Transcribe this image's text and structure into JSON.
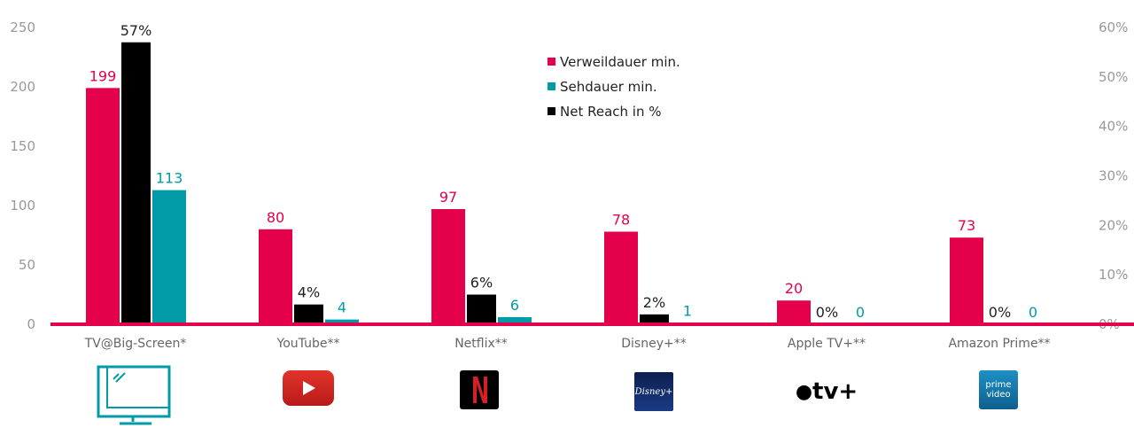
{
  "chart_data": {
    "type": "bar",
    "categories": [
      "TV@Big-Screen*",
      "YouTube**",
      "Netflix**",
      "Disney+**",
      "Apple TV+**",
      "Amazon Prime**"
    ],
    "series": [
      {
        "name": "Verweildauer min.",
        "axis": "left",
        "color": "#e4004b",
        "values": [
          199,
          80,
          97,
          78,
          20,
          73
        ],
        "labels": [
          "199",
          "80",
          "97",
          "78",
          "20",
          "73"
        ]
      },
      {
        "name": "Net Reach in %",
        "axis": "right",
        "color": "#000000",
        "values": [
          57,
          4,
          6,
          2,
          0,
          0
        ],
        "labels": [
          "57%",
          "4%",
          "6%",
          "2%",
          "0%",
          "0%"
        ]
      },
      {
        "name": "Sehdauer min.",
        "axis": "left",
        "color": "#009ba6",
        "values": [
          113,
          4,
          6,
          1,
          0,
          0
        ],
        "labels": [
          "113",
          "4",
          "6",
          "1",
          "0",
          "0"
        ]
      }
    ],
    "legend_order": [
      "Verweildauer min.",
      "Sehdauer min.",
      "Net Reach in %"
    ],
    "legend": "top-center",
    "y_left": {
      "ylim": [
        0,
        250
      ],
      "ticks": [
        "0",
        "50",
        "100",
        "150",
        "200",
        "250"
      ]
    },
    "y_right": {
      "ylim": [
        0,
        60
      ],
      "ticks": [
        "0%",
        "10%",
        "20%",
        "30%",
        "40%",
        "50%",
        "60%"
      ]
    },
    "grid": false
  },
  "logos": {
    "tv": "tv-icon",
    "youtube": "youtube-logo",
    "netflix": "netflix-logo",
    "disney": "Disney+",
    "apple": "tv+",
    "amazon": [
      "prime",
      "video"
    ]
  }
}
